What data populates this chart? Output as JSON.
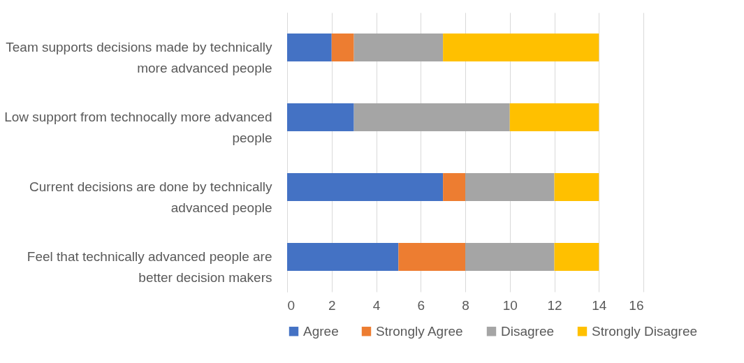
{
  "chart_data": {
    "type": "bar",
    "orientation": "horizontal",
    "stacked": true,
    "categories": [
      "Team supports decisions made by technically more advanced people",
      "Low support from technocally more advanced people",
      "Current decisions are done by technically advanced people",
      "Feel that technically advanced people are better decision makers"
    ],
    "series": [
      {
        "name": "Agree",
        "color": "#4472c4",
        "values": [
          2,
          3,
          7,
          5
        ]
      },
      {
        "name": "Strongly Agree",
        "color": "#ed7d31",
        "values": [
          1,
          0,
          1,
          3
        ]
      },
      {
        "name": "Disagree",
        "color": "#a5a5a5",
        "values": [
          4,
          7,
          4,
          4
        ]
      },
      {
        "name": "Strongly Disagree",
        "color": "#ffc000",
        "values": [
          7,
          4,
          2,
          2
        ]
      }
    ],
    "xlim": [
      0,
      16
    ],
    "xticks": [
      0,
      2,
      4,
      6,
      8,
      10,
      12,
      14,
      16
    ],
    "grid": "x",
    "legend": "bottom"
  }
}
